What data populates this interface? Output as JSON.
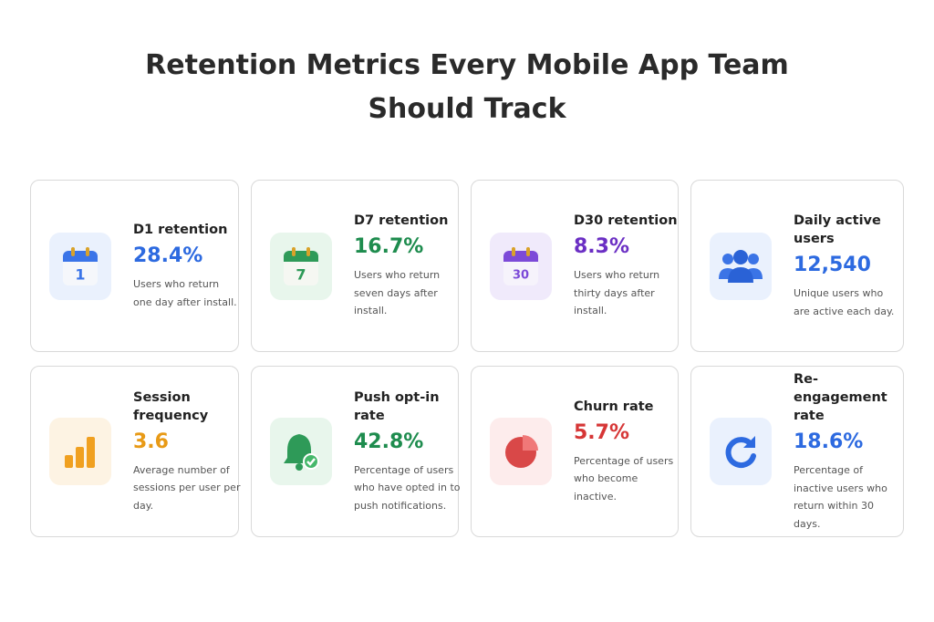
{
  "header": {
    "title_lines": [
      "Retention Metrics Every Mobile App Team",
      "Should Track"
    ]
  },
  "cards": [
    {
      "label": "D1 retention",
      "value": "28.4%",
      "description": "Users who return one day after install.",
      "icon_text": "1"
    },
    {
      "label": "D7 retention",
      "value": "16.7%",
      "description": "Users who return seven days after install.",
      "icon_text": "7"
    },
    {
      "label": "D30 retention",
      "value": "8.3%",
      "description": "Users who return thirty days after install.",
      "icon_text": "30"
    },
    {
      "label": "Daily active users",
      "value": "12,540",
      "description": "Unique users who are active each day."
    },
    {
      "label": "Session frequency",
      "value": "3.6",
      "description": "Average number of sessions per user per day."
    },
    {
      "label": "Push opt-in rate",
      "value": "42.8%",
      "description": "Percentage of users who have opted in to push notifications."
    },
    {
      "label": "Churn rate",
      "value": "5.7%",
      "description": "Percentage of users who become inactive."
    },
    {
      "label": "Re-engagement rate",
      "value": "18.6%",
      "description": "Percentage of inactive users who return within 30 days."
    }
  ]
}
